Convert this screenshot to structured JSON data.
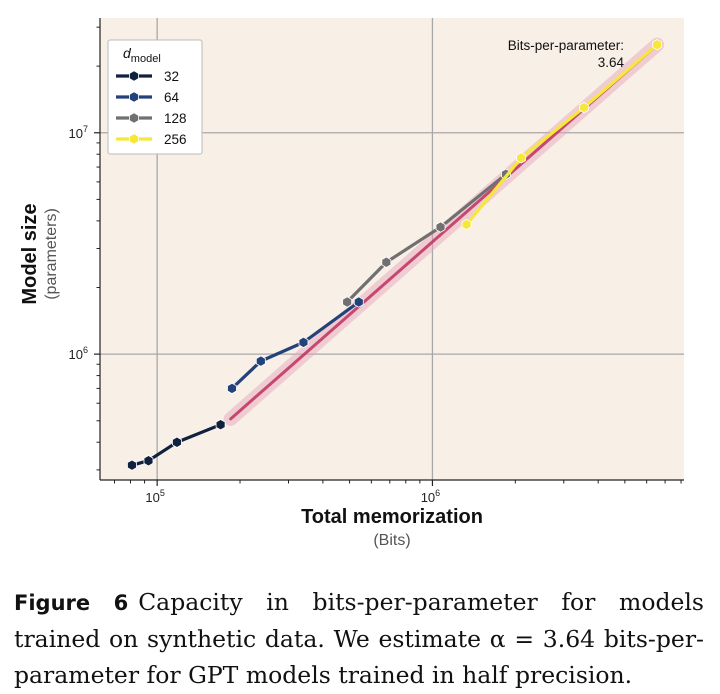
{
  "chart_data": {
    "type": "line",
    "title": "",
    "xlabel": "Total memorization",
    "xlabel_unit": "(Bits)",
    "ylabel": "Model size",
    "ylabel_unit": "(parameters)",
    "xscale": "log",
    "yscale": "log",
    "xlim": [
      62000,
      8200000
    ],
    "ylim": [
      270000,
      33000000
    ],
    "xticks": [
      {
        "value": 100000,
        "base": "10",
        "exp": "5"
      },
      {
        "value": 1000000,
        "base": "10",
        "exp": "6"
      }
    ],
    "yticks": [
      {
        "value": 1000000,
        "base": "10",
        "exp": "6"
      },
      {
        "value": 10000000,
        "base": "10",
        "exp": "7"
      }
    ],
    "grid": true,
    "legend": {
      "title_main": "d",
      "title_sub": "model",
      "placement": "top-left"
    },
    "series": [
      {
        "name": "32",
        "color": "#10203f",
        "x": [
          81000,
          93000,
          118000,
          170000
        ],
        "y": [
          315000,
          330000,
          400000,
          480000
        ]
      },
      {
        "name": "64",
        "color": "#24427a",
        "x": [
          187000,
          238000,
          340000,
          540000
        ],
        "y": [
          700000,
          930000,
          1130000,
          1720000
        ]
      },
      {
        "name": "128",
        "color": "#707070",
        "x": [
          490000,
          680000,
          1070000,
          1850000
        ],
        "y": [
          1720000,
          2600000,
          3750000,
          6500000
        ]
      },
      {
        "name": "256",
        "color": "#f5e83a",
        "x": [
          1330000,
          2100000,
          3550000,
          6550000
        ],
        "y": [
          3850000,
          7700000,
          13000000,
          25000000
        ]
      }
    ],
    "fit_line": {
      "x": [
        185000,
        6550000
      ],
      "y": [
        510000,
        25000000
      ],
      "color": "#c03060"
    },
    "annotation": {
      "title": "Bits-per-parameter:",
      "value": "3.64"
    }
  },
  "caption": {
    "label": "Figure 6",
    "text": "Capacity in bits-per-parameter for models trained on synthetic data. We estimate α = 3.64 bits-per-parameter for GPT models trained in half precision."
  }
}
